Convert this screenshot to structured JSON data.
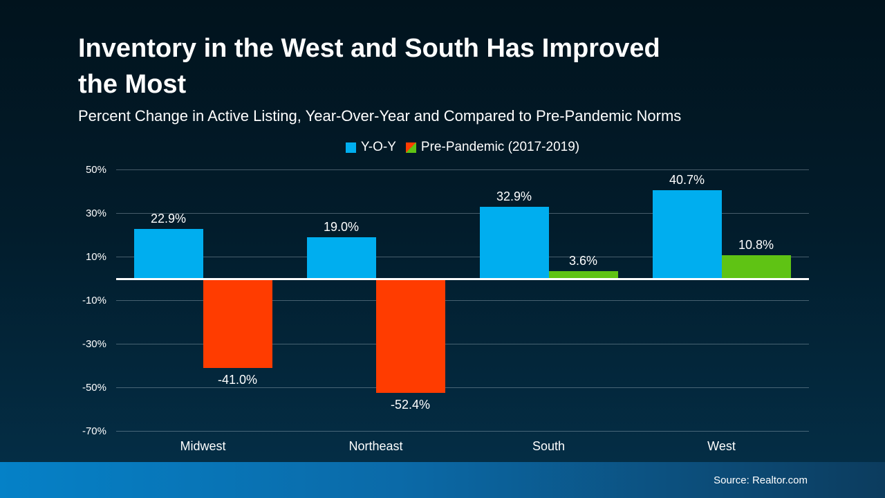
{
  "slide": {
    "title_line1": "Inventory in the West and South Has Improved",
    "title_line2": "the Most",
    "subtitle": "Percent Change in Active Listing, Year-Over-Year and Compared to Pre-Pandemic Norms",
    "source": "Source: Realtor.com"
  },
  "legend": {
    "items": [
      {
        "label": "Y-O-Y",
        "marker": "blue-square"
      },
      {
        "label": "Pre-Pandemic (2017-2019)",
        "marker": "red-green-diagonal-square"
      }
    ]
  },
  "colors": {
    "yoy_bar": "#00AEEF",
    "pre_pandemic_positive_bar": "#5FC314",
    "pre_pandemic_negative_bar": "#FF3C00",
    "zero_axis": "#FFFFFF",
    "footer_left": "#0581C7",
    "footer_right": "#0C3C5E",
    "background_top": "#01131D",
    "background_bottom": "#043049"
  },
  "chart_data": {
    "type": "bar",
    "title": "Inventory in the West and South Has Improved the Most",
    "subtitle": "Percent Change in Active Listing, Year-Over-Year and Compared to Pre-Pandemic Norms",
    "categories": [
      "Midwest",
      "Northeast",
      "South",
      "West"
    ],
    "series": [
      {
        "name": "Y-O-Y",
        "values": [
          22.9,
          19.0,
          32.9,
          40.7
        ],
        "labels": [
          "22.9%",
          "19.0%",
          "32.9%",
          "40.7%"
        ]
      },
      {
        "name": "Pre-Pandemic (2017-2019)",
        "values": [
          -41.0,
          -52.4,
          3.6,
          10.8
        ],
        "labels": [
          "-41.0%",
          "-52.4%",
          "3.6%",
          "10.8%"
        ]
      }
    ],
    "y_ticks": [
      50,
      30,
      10,
      -10,
      -30,
      -50,
      -70
    ],
    "y_tick_labels": [
      "50%",
      "30%",
      "10%",
      "-10%",
      "-30%",
      "-50%",
      "-70%"
    ],
    "ylim": [
      -70,
      50
    ],
    "xlabel": "",
    "ylabel": "",
    "grid": "horizontal",
    "legend_position": "top-center",
    "source": "Source: Realtor.com"
  }
}
